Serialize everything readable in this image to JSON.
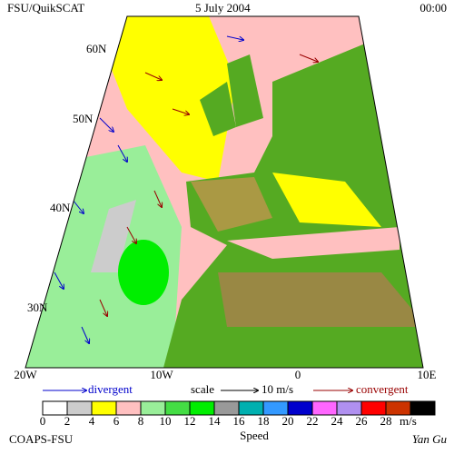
{
  "header": {
    "source": "FSU/QuikSCAT",
    "date": "5 July 2004",
    "time": "00:00"
  },
  "map": {
    "lat_labels": [
      "60N",
      "50N",
      "40N",
      "30N"
    ],
    "lon_labels": [
      "20W",
      "10W",
      "0",
      "10E"
    ]
  },
  "legend": {
    "divergent": "divergent",
    "scale": "scale",
    "scale_value": "10 m/s",
    "convergent": "convergent",
    "colorbar": {
      "ticks": [
        0,
        2,
        4,
        6,
        8,
        10,
        12,
        14,
        16,
        18,
        20,
        22,
        24,
        26,
        28
      ],
      "unit": "m/s",
      "title": "Speed",
      "colors": [
        "#ffffff",
        "#cccccc",
        "#ffff00",
        "#ffc0c0",
        "#99ee99",
        "#44dd44",
        "#00ee00",
        "#999999",
        "#00b0b0",
        "#3399ff",
        "#0000cc",
        "#ff66ff",
        "#b090f0",
        "#ff0000",
        "#cc3300",
        "#000000"
      ]
    }
  },
  "footer": {
    "organization": "COAPS-FSU",
    "author": "Yan Gu"
  }
}
